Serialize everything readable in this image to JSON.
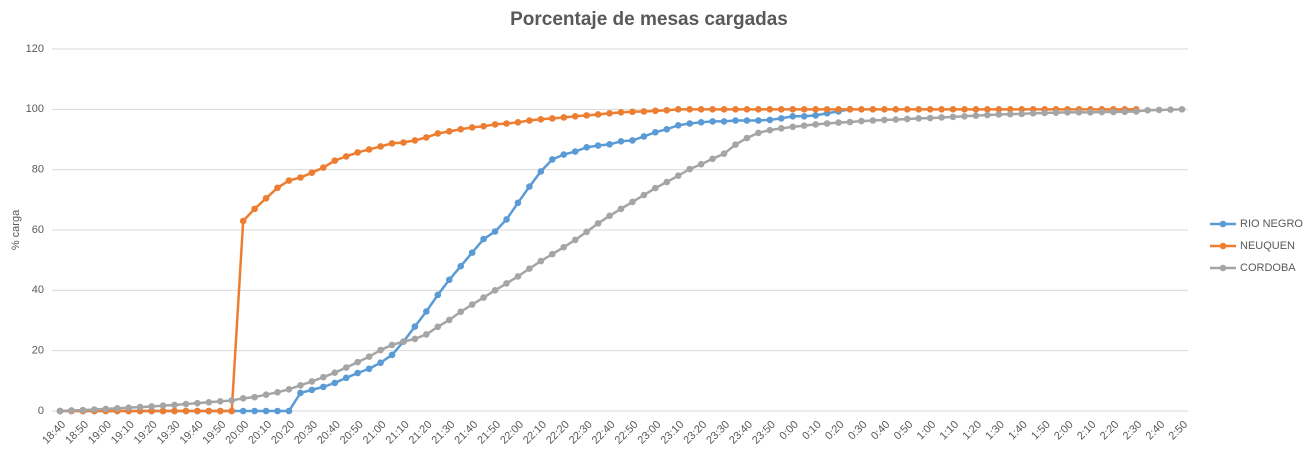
{
  "chart_data": {
    "type": "line",
    "title": "Porcentaje de mesas cargadas",
    "y_label": "% carga",
    "categories": [
      "18:40",
      null,
      "18:50",
      null,
      "19:00",
      null,
      "19:10",
      null,
      "19:20",
      null,
      "19:30",
      null,
      "19:40",
      null,
      "19:50",
      null,
      "20:00",
      null,
      "20:10",
      null,
      "20:20",
      null,
      "20:30",
      null,
      "20:40",
      null,
      "20:50",
      null,
      "21:00",
      null,
      "21:10",
      null,
      "21:20",
      null,
      "21:30",
      null,
      "21:40",
      null,
      "21:50",
      null,
      "22:00",
      null,
      "22:10",
      null,
      "22:20",
      null,
      "22:30",
      null,
      "22:40",
      null,
      "22:50",
      null,
      "23:00",
      null,
      "23:10",
      null,
      "23:20",
      null,
      "23:30",
      null,
      "23:40",
      null,
      "23:50",
      null,
      "0:00",
      null,
      "0:10",
      null,
      "0:20",
      null,
      "0:30",
      null,
      "0:40",
      null,
      "0:50",
      null,
      "1:00",
      null,
      "1:10",
      null,
      "1:20",
      null,
      "1:30",
      null,
      "1:40",
      null,
      "1:50",
      null,
      "2:00",
      null,
      "2:10",
      null,
      "2:20",
      null,
      "2:30",
      null,
      "2:40",
      null,
      "2:50"
    ],
    "series": [
      {
        "name": "RIO NEGRO",
        "color": "#5b9bd5",
        "values": [
          0,
          0,
          0,
          0,
          0,
          0,
          0,
          0,
          0,
          0,
          0,
          0,
          0,
          0,
          0,
          0,
          0,
          0,
          0,
          0,
          0,
          6,
          7,
          8,
          9.3,
          11,
          12.6,
          14,
          16,
          18.6,
          23,
          28,
          33,
          38.5,
          43.5,
          48,
          52.5,
          57,
          59.5,
          63.5,
          69,
          74.4,
          79.4,
          83.4,
          85,
          86,
          87.4,
          88,
          88.4,
          89.4,
          89.7,
          91,
          92.4,
          93.4,
          94.7,
          95.3,
          95.7,
          96,
          96,
          96.3,
          96.3,
          96.3,
          96.5,
          97,
          97.7,
          97.7,
          98,
          98.7,
          99.3,
          100,
          null,
          null,
          null,
          null,
          null,
          null,
          null,
          null,
          null,
          null,
          null,
          null,
          null,
          null,
          null,
          null,
          null,
          null,
          null,
          null,
          null,
          null,
          null,
          null,
          null,
          null,
          null,
          null,
          null
        ]
      },
      {
        "name": "NEUQUEN",
        "color": "#ed7d31",
        "values": [
          0,
          0,
          0,
          0,
          0,
          0,
          0,
          0,
          0,
          0,
          0,
          0,
          0,
          0,
          0,
          0,
          63,
          67,
          70.5,
          74,
          76.4,
          77.4,
          79,
          80.7,
          83,
          84.4,
          85.7,
          86.7,
          87.7,
          88.7,
          89,
          89.7,
          90.7,
          92,
          92.7,
          93.4,
          94,
          94.4,
          95,
          95.3,
          95.7,
          96.3,
          96.7,
          97,
          97.3,
          97.7,
          98,
          98.3,
          98.7,
          99,
          99.2,
          99.3,
          99.5,
          99.7,
          100,
          100,
          100,
          100,
          100,
          100,
          100,
          100,
          100,
          100,
          100,
          100,
          100,
          100,
          100,
          100,
          100,
          100,
          100,
          100,
          100,
          100,
          100,
          100,
          100,
          100,
          100,
          100,
          100,
          100,
          100,
          100,
          100,
          100,
          100,
          100,
          100,
          100,
          100,
          100,
          100,
          null,
          null,
          null,
          null
        ]
      },
      {
        "name": "CORDOBA",
        "color": "#a5a5a5",
        "values": [
          0,
          0.2,
          0.3,
          0.5,
          0.7,
          0.9,
          1.1,
          1.3,
          1.5,
          1.8,
          2,
          2.3,
          2.6,
          2.9,
          3.2,
          3.5,
          4.2,
          4.6,
          5.4,
          6.2,
          7.2,
          8.5,
          9.8,
          11.2,
          12.7,
          14.4,
          16.2,
          18,
          20.2,
          21.9,
          23,
          23.9,
          25.4,
          27.9,
          30.2,
          32.9,
          35.3,
          37.6,
          40,
          42.3,
          44.6,
          47.2,
          49.7,
          52,
          54.3,
          56.7,
          59.4,
          62.2,
          64.7,
          67,
          69.3,
          71.6,
          73.9,
          75.9,
          78,
          80.2,
          81.8,
          83.6,
          85.3,
          88.3,
          90.5,
          92.2,
          93.1,
          93.7,
          94.2,
          94.6,
          95,
          95.3,
          95.6,
          95.8,
          96.1,
          96.3,
          96.5,
          96.6,
          96.8,
          97,
          97.1,
          97.3,
          97.5,
          97.7,
          97.9,
          98.1,
          98.3,
          98.4,
          98.5,
          98.7,
          98.8,
          98.9,
          99,
          99,
          99,
          99.1,
          99.1,
          99.2,
          99.3,
          99.7,
          99.8,
          99.9,
          100
        ]
      }
    ],
    "ylim": [
      0,
      120
    ],
    "yticks": [
      0,
      20,
      40,
      60,
      80,
      100,
      120
    ],
    "grid": true,
    "legend": "right"
  }
}
